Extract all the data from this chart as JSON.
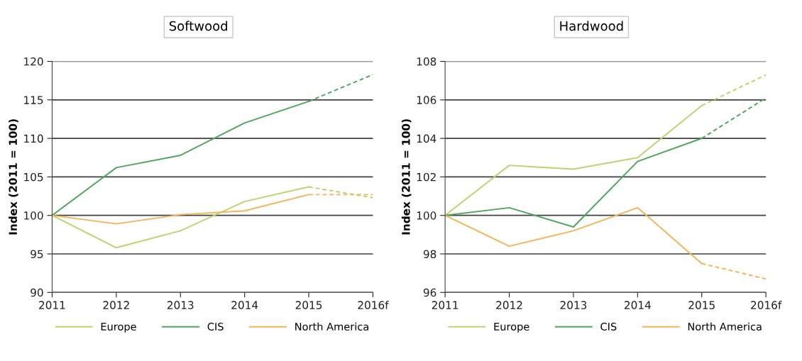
{
  "chart_data": [
    {
      "type": "line",
      "title": "Softwood",
      "ylabel": "Index (2011 = 100)",
      "categories": [
        "2011",
        "2012",
        "2013",
        "2014",
        "2015",
        "2016f"
      ],
      "ylim": [
        90,
        120
      ],
      "yticks": [
        90,
        95,
        100,
        105,
        110,
        115,
        120
      ],
      "grid": "y",
      "legend": "bottom",
      "series": [
        {
          "name": "Europe",
          "color": "#b9d66e",
          "line_style": "solid",
          "values": [
            100,
            95.8,
            98,
            101.8,
            103.7,
            null
          ]
        },
        {
          "name": "CIS",
          "color": "#4ea65c",
          "line_style": "solid",
          "values": [
            100,
            106.2,
            107.8,
            112,
            114.8,
            null
          ]
        },
        {
          "name": "North America",
          "color": "#f5b456",
          "line_style": "solid",
          "values": [
            100,
            98.9,
            100.1,
            100.6,
            102.7,
            null
          ]
        },
        {
          "color": "#b9d66e",
          "line_style": "dashed",
          "values": [
            null,
            null,
            null,
            null,
            103.7,
            102.3
          ]
        },
        {
          "color": "#4ea65c",
          "line_style": "dashed",
          "values": [
            null,
            null,
            null,
            null,
            114.8,
            118.3
          ]
        },
        {
          "color": "#f5b456",
          "line_style": "dashed",
          "values": [
            null,
            null,
            null,
            null,
            102.7,
            102.7
          ]
        }
      ]
    },
    {
      "type": "line",
      "title": "Hardwood",
      "ylabel": "Index (2011 = 100)",
      "categories": [
        "2011",
        "2012",
        "2013",
        "2014",
        "2015",
        "2016f"
      ],
      "ylim": [
        96,
        108
      ],
      "yticks": [
        96,
        98,
        100,
        102,
        104,
        106,
        108
      ],
      "grid": "y",
      "legend": "bottom",
      "series": [
        {
          "name": "Europe",
          "color": "#b9d66e",
          "line_style": "solid",
          "values": [
            100,
            102.6,
            102.4,
            103,
            105.7,
            null
          ]
        },
        {
          "name": "CIS",
          "color": "#4ea65c",
          "line_style": "solid",
          "values": [
            100,
            100.4,
            99.4,
            102.8,
            104,
            null
          ]
        },
        {
          "name": "North America",
          "color": "#f5b456",
          "line_style": "solid",
          "values": [
            100,
            98.4,
            99.2,
            100.4,
            97.5,
            null
          ]
        },
        {
          "color": "#b9d66e",
          "line_style": "dashed",
          "values": [
            null,
            null,
            null,
            null,
            105.7,
            107.3
          ]
        },
        {
          "color": "#4ea65c",
          "line_style": "dashed",
          "values": [
            null,
            null,
            null,
            null,
            104,
            106.1
          ]
        },
        {
          "color": "#f5b456",
          "line_style": "dashed",
          "values": [
            null,
            null,
            null,
            null,
            97.5,
            96.7
          ]
        }
      ]
    }
  ]
}
